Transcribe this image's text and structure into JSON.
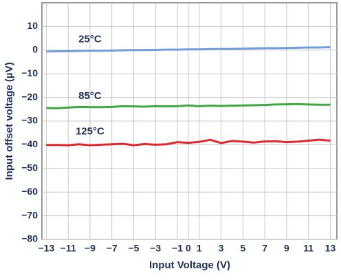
{
  "chart_data": {
    "type": "line",
    "x_label": "Input Voltage (V)",
    "y_label": "Input offset voltage (µV)",
    "x": [
      -13,
      -12,
      -11,
      -10,
      -9,
      -8,
      -7,
      -6,
      -5,
      -4,
      -3,
      -2,
      -1,
      0,
      1,
      2,
      3,
      4,
      5,
      6,
      7,
      8,
      9,
      10,
      11,
      12,
      13
    ],
    "series": [
      {
        "name": "25°C",
        "color": "#6e9fdc",
        "values": [
          -0.6,
          -0.5,
          -0.5,
          -0.4,
          -0.3,
          -0.3,
          -0.2,
          -0.1,
          0,
          0,
          0.1,
          0.2,
          0.2,
          0.3,
          0.3,
          0.4,
          0.5,
          0.5,
          0.6,
          0.7,
          0.8,
          0.8,
          0.9,
          1,
          1.1,
          1.1,
          1.2
        ]
      },
      {
        "name": "85°C",
        "color": "#3ca83f",
        "values": [
          -24.5,
          -24.6,
          -24.3,
          -24,
          -24.1,
          -24.1,
          -24,
          -23.7,
          -23.8,
          -23.9,
          -23.7,
          -23.8,
          -23.7,
          -23.4,
          -23.7,
          -23.5,
          -23.6,
          -23.5,
          -23.4,
          -23.3,
          -23.2,
          -23,
          -22.9,
          -22.8,
          -23,
          -23.1,
          -23.1
        ]
      },
      {
        "name": "125°C",
        "color": "#e6252b",
        "values": [
          -40.1,
          -40.1,
          -40.2,
          -39.8,
          -40.2,
          -40,
          -39.8,
          -39.6,
          -40.2,
          -39.7,
          -40,
          -39.8,
          -38.9,
          -39.2,
          -38.8,
          -37.9,
          -39.3,
          -38.4,
          -38.7,
          -39.1,
          -38.6,
          -38.5,
          -38.9,
          -38.7,
          -38.3,
          -37.9,
          -38.3
        ]
      }
    ],
    "xlim": [
      -13.4,
      13.6
    ],
    "ylim": [
      -80,
      20
    ],
    "xticks": [
      {
        "value": -13,
        "label": "−13"
      },
      {
        "value": -11,
        "label": "−11"
      },
      {
        "value": -9,
        "label": "−9"
      },
      {
        "value": -7,
        "label": "−7"
      },
      {
        "value": -5,
        "label": "−5"
      },
      {
        "value": -3,
        "label": "−3"
      },
      {
        "value": -1,
        "label": "−1"
      },
      0,
      1,
      3,
      5,
      7,
      9,
      11,
      13
    ],
    "yticks": [
      {
        "value": -80,
        "label": "−80"
      },
      {
        "value": -70,
        "label": "−70"
      },
      {
        "value": -60,
        "label": "−60"
      },
      {
        "value": -50,
        "label": "−50"
      },
      {
        "value": -40,
        "label": "−40"
      },
      {
        "value": -30,
        "label": "−30"
      },
      {
        "value": -20,
        "label": "−20"
      },
      {
        "value": -10,
        "label": "−10"
      },
      0,
      10
    ],
    "grid": true
  }
}
